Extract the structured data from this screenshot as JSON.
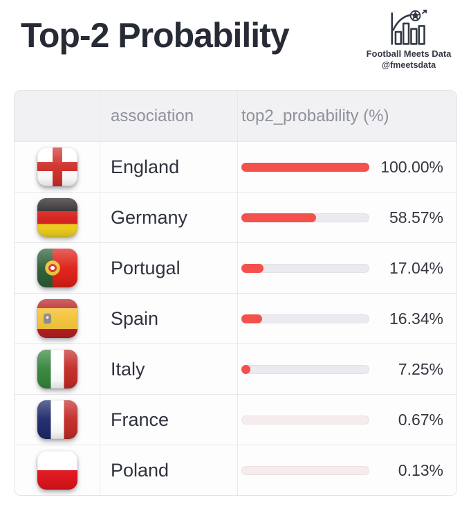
{
  "title": "Top-2 Probability",
  "brand": {
    "name": "Football Meets Data",
    "handle": "@fmeetsdata",
    "icon": "bar-chart-football-icon"
  },
  "table": {
    "columns": [
      {
        "label": ""
      },
      {
        "label": "association"
      },
      {
        "label": "top2_probability (%)"
      }
    ],
    "rows": [
      {
        "association": "England",
        "flag": "england",
        "value": 100.0,
        "label": "100.00%"
      },
      {
        "association": "Germany",
        "flag": "germany",
        "value": 58.57,
        "label": "58.57%"
      },
      {
        "association": "Portugal",
        "flag": "portugal",
        "value": 17.04,
        "label": "17.04%"
      },
      {
        "association": "Spain",
        "flag": "spain",
        "value": 16.34,
        "label": "16.34%"
      },
      {
        "association": "Italy",
        "flag": "italy",
        "value": 7.25,
        "label": "7.25%"
      },
      {
        "association": "France",
        "flag": "france",
        "value": 0.67,
        "label": "0.67%"
      },
      {
        "association": "Poland",
        "flag": "poland",
        "value": 0.13,
        "label": "0.13%"
      }
    ]
  },
  "colors": {
    "bar_fill": "#f4504c",
    "bar_track": "#ebebef",
    "bar_track_low": "#f6ecee",
    "title_text": "#262b36",
    "header_text": "#8f929b",
    "value_text": "#33363e"
  },
  "chart_data": {
    "type": "bar",
    "orientation": "horizontal",
    "title": "Top-2 Probability",
    "categories": [
      "England",
      "Germany",
      "Portugal",
      "Spain",
      "Italy",
      "France",
      "Poland"
    ],
    "values": [
      100.0,
      58.57,
      17.04,
      16.34,
      7.25,
      0.67,
      0.13
    ],
    "xlabel": "top2_probability (%)",
    "ylabel": "association",
    "xlim": [
      0,
      100
    ],
    "grid": false,
    "legend": false
  }
}
